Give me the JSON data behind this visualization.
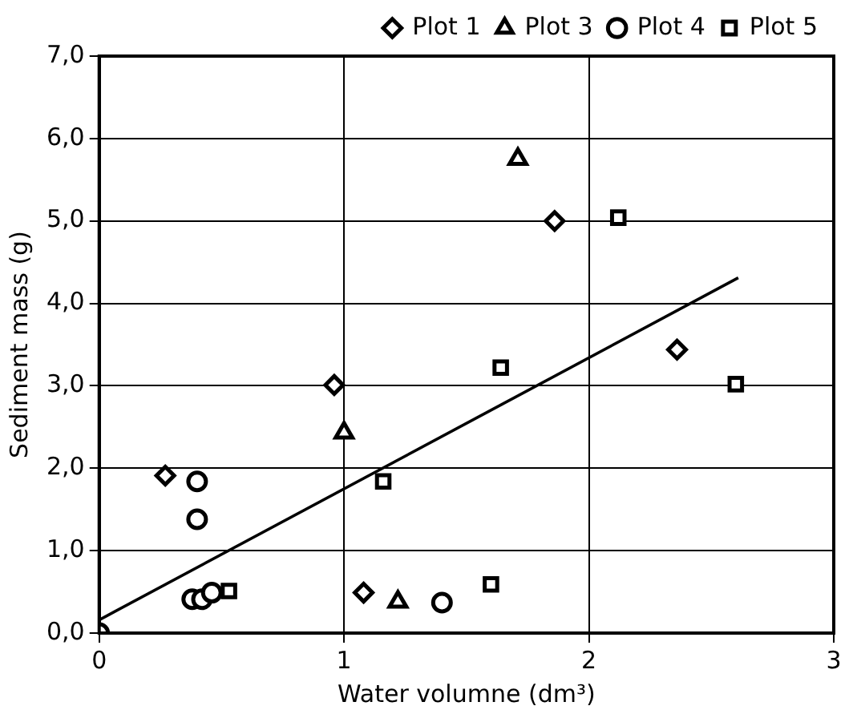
{
  "chart_data": {
    "type": "scatter",
    "xlabel": "Water volumne (dm³)",
    "ylabel": "Sediment mass (g)",
    "xlim": [
      0,
      3
    ],
    "xticks": [
      0,
      1,
      2,
      3
    ],
    "ylim": [
      0,
      7
    ],
    "yticks": [
      {
        "value": 0,
        "label": "0,0"
      },
      {
        "value": 1,
        "label": "1,0"
      },
      {
        "value": 2,
        "label": "2,0"
      },
      {
        "value": 3,
        "label": "3,0"
      },
      {
        "value": 4,
        "label": "4,0"
      },
      {
        "value": 5,
        "label": "5,0"
      },
      {
        "value": 6,
        "label": "6,0"
      },
      {
        "value": 7,
        "label": "7,0"
      }
    ],
    "grid": true,
    "legend": "top",
    "series": [
      {
        "name": "Plot 1",
        "color": "#000000",
        "marker": "diamond",
        "x": [
          0.27,
          0.96,
          1.08,
          1.86,
          2.36
        ],
        "values": [
          1.91,
          3.01,
          0.49,
          5.0,
          3.44
        ]
      },
      {
        "name": "Plot 3",
        "color": "#000000",
        "marker": "triangle",
        "x": [
          1.0,
          1.22,
          1.71
        ],
        "values": [
          2.43,
          0.38,
          5.75
        ]
      },
      {
        "name": "Plot 4",
        "color": "#000000",
        "marker": "circle",
        "x": [
          0,
          0.4,
          0.4,
          0.38,
          0.42,
          0.46,
          1.4
        ],
        "values": [
          0,
          1.84,
          1.38,
          0.41,
          0.41,
          0.49,
          0.37
        ]
      },
      {
        "name": "Plot 5",
        "color": "#000000",
        "marker": "square",
        "x": [
          0.53,
          1.16,
          1.6,
          1.64,
          2.12,
          2.6
        ],
        "values": [
          0.51,
          1.84,
          0.59,
          3.22,
          5.04,
          3.02
        ]
      },
      {
        "type": "line",
        "color": "#000000",
        "marker": "none",
        "x": [
          0,
          2.61
        ],
        "values": [
          0.16,
          4.31
        ]
      }
    ]
  }
}
